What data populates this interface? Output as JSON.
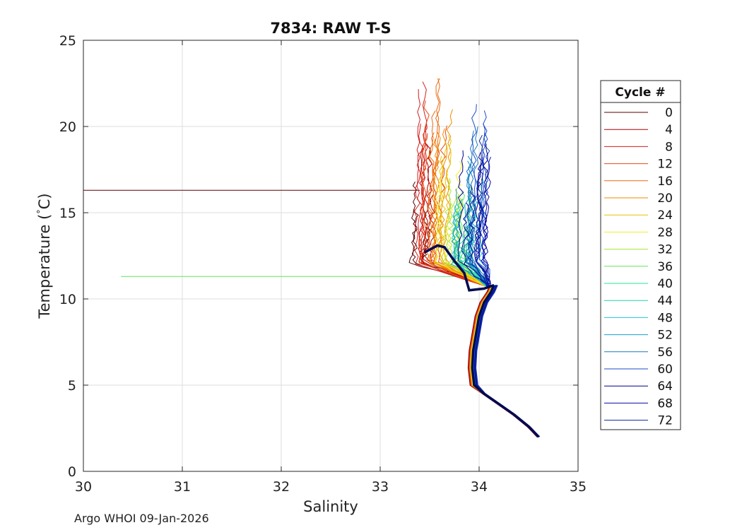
{
  "chart_data": {
    "type": "line",
    "title": "7834: RAW T-S",
    "xlabel": "Salinity",
    "ylabel": "Temperature (°C)",
    "ylabel_parts": [
      "Temperature (",
      "°",
      "C)"
    ],
    "xlim": [
      30,
      35
    ],
    "ylim": [
      0,
      25
    ],
    "xticks": [
      30,
      31,
      32,
      33,
      34,
      35
    ],
    "yticks": [
      0,
      5,
      10,
      15,
      20,
      25
    ],
    "grid": true,
    "legend": {
      "title": "Cycle #",
      "placement": "right",
      "entries": [
        {
          "name": "0",
          "color": "#5a0000"
        },
        {
          "name": "4",
          "color": "#b00000"
        },
        {
          "name": "8",
          "color": "#d21e1e"
        },
        {
          "name": "12",
          "color": "#e64a18"
        },
        {
          "name": "16",
          "color": "#ec6a12"
        },
        {
          "name": "20",
          "color": "#f08a00"
        },
        {
          "name": "24",
          "color": "#e8c400"
        },
        {
          "name": "28",
          "color": "#f2ee20"
        },
        {
          "name": "32",
          "color": "#a6e632"
        },
        {
          "name": "36",
          "color": "#5ce65c"
        },
        {
          "name": "40",
          "color": "#28e696"
        },
        {
          "name": "44",
          "color": "#1ed2b4"
        },
        {
          "name": "48",
          "color": "#1ec8dc"
        },
        {
          "name": "52",
          "color": "#14a0c8"
        },
        {
          "name": "56",
          "color": "#1a78c0"
        },
        {
          "name": "60",
          "color": "#1e4cc8"
        },
        {
          "name": "64",
          "color": "#00008c"
        },
        {
          "name": "68",
          "color": "#0a0aa6"
        },
        {
          "name": "72",
          "color": "#0a28a0"
        }
      ]
    },
    "spike_lines": [
      {
        "cycle": "0",
        "temperature": 16.3,
        "salinity_range": [
          30.0,
          33.4
        ]
      },
      {
        "cycle": "36",
        "temperature": 11.3,
        "salinity_range": [
          30.38,
          34.1
        ]
      }
    ],
    "deep_profile": [
      [
        34.6,
        2.0
      ],
      [
        34.5,
        2.6
      ],
      [
        34.35,
        3.3
      ],
      [
        34.2,
        3.9
      ],
      [
        34.05,
        4.5
      ],
      [
        33.95,
        5.0
      ],
      [
        33.93,
        6.0
      ],
      [
        33.94,
        7.0
      ],
      [
        33.97,
        8.0
      ],
      [
        34.0,
        9.0
      ],
      [
        34.05,
        9.8
      ],
      [
        34.12,
        10.4
      ],
      [
        34.15,
        10.8
      ]
    ],
    "highlight_profile": [
      [
        34.15,
        10.8
      ],
      [
        34.05,
        10.6
      ],
      [
        33.9,
        10.5
      ],
      [
        33.85,
        11.5
      ],
      [
        33.75,
        12.2
      ],
      [
        33.65,
        13.0
      ],
      [
        33.58,
        13.1
      ],
      [
        33.45,
        12.7
      ]
    ],
    "shallow_profiles": [
      {
        "cycle": "0",
        "salinity_range": [
          33.35,
          33.5
        ],
        "top_temperature": 16.8
      },
      {
        "cycle": "4",
        "salinity_range": [
          33.4,
          33.55
        ],
        "top_temperature": 19.0
      },
      {
        "cycle": "8",
        "salinity_range": [
          33.4,
          33.6
        ],
        "top_temperature": 22.6
      },
      {
        "cycle": "12",
        "salinity_range": [
          33.45,
          33.65
        ],
        "top_temperature": 21.5
      },
      {
        "cycle": "16",
        "salinity_range": [
          33.5,
          33.7
        ],
        "top_temperature": 22.8
      },
      {
        "cycle": "20",
        "salinity_range": [
          33.55,
          33.75
        ],
        "top_temperature": 21.0
      },
      {
        "cycle": "24",
        "salinity_range": [
          33.6,
          33.8
        ],
        "top_temperature": 19.5
      },
      {
        "cycle": "28",
        "salinity_range": [
          33.6,
          33.85
        ],
        "top_temperature": 18.0
      },
      {
        "cycle": "32",
        "salinity_range": [
          33.65,
          33.9
        ],
        "top_temperature": 17.0
      },
      {
        "cycle": "36",
        "salinity_range": [
          33.7,
          33.95
        ],
        "top_temperature": 16.5
      },
      {
        "cycle": "40",
        "salinity_range": [
          33.7,
          34.0
        ],
        "top_temperature": 15.5
      },
      {
        "cycle": "44",
        "salinity_range": [
          33.7,
          34.0
        ],
        "top_temperature": 16.0
      },
      {
        "cycle": "48",
        "salinity_range": [
          33.75,
          34.05
        ],
        "top_temperature": 17.0
      },
      {
        "cycle": "52",
        "salinity_range": [
          33.75,
          34.05
        ],
        "top_temperature": 18.0
      },
      {
        "cycle": "56",
        "salinity_range": [
          33.8,
          34.1
        ],
        "top_temperature": 20.0
      },
      {
        "cycle": "60",
        "salinity_range": [
          33.8,
          34.1
        ],
        "top_temperature": 21.3
      },
      {
        "cycle": "64",
        "salinity_range": [
          33.8,
          34.1
        ],
        "top_temperature": 19.0
      },
      {
        "cycle": "68",
        "salinity_range": [
          33.85,
          34.1
        ],
        "top_temperature": 18.5
      },
      {
        "cycle": "72",
        "salinity_range": [
          33.85,
          34.1
        ],
        "top_temperature": 19.5
      }
    ]
  },
  "footer": "Argo WHOI 09-Jan-2026"
}
